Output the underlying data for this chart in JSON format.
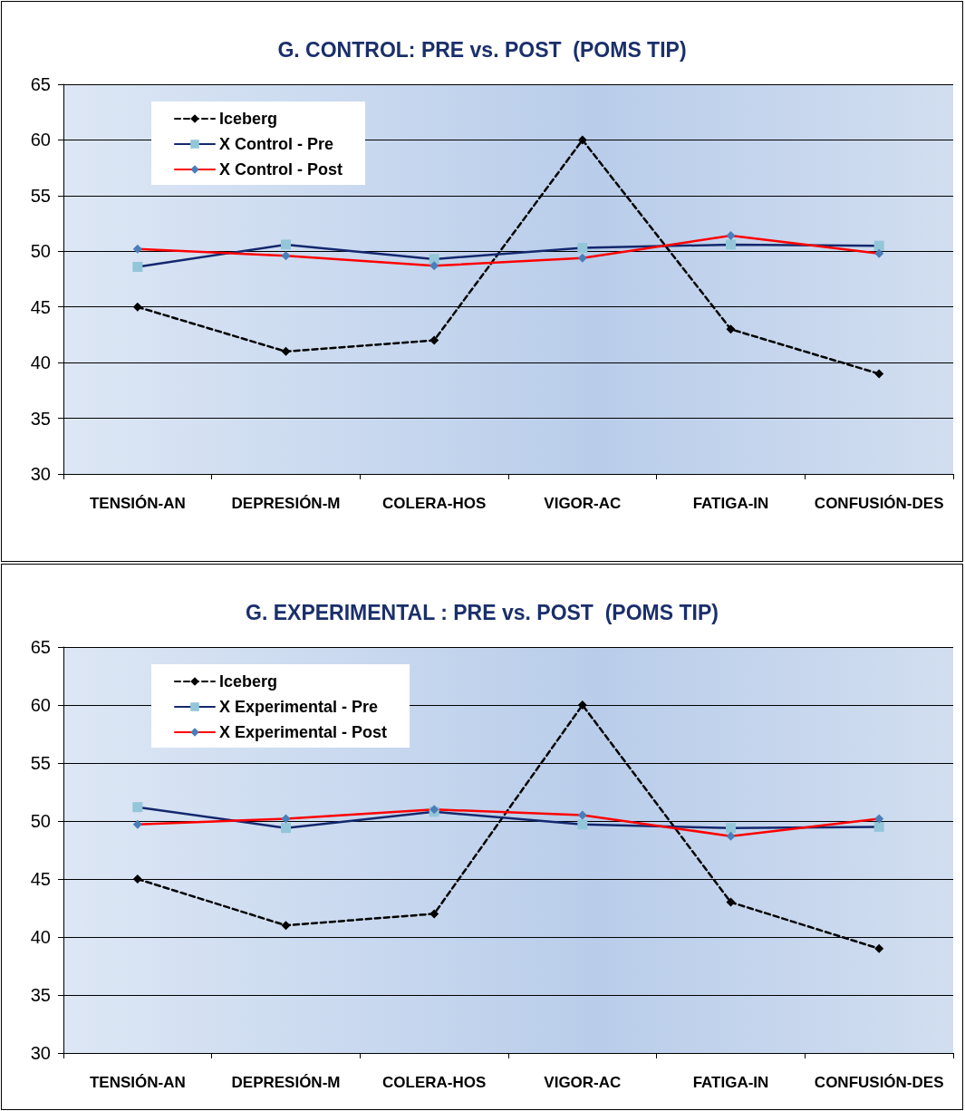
{
  "chart_data": [
    {
      "type": "line",
      "title": "G. CONTROL: PRE vs. POST  (POMS TIP)",
      "categories": [
        "TENSIÓN-AN",
        "DEPRESIÓN-M",
        "COLERA-HOS",
        "VIGOR-AC",
        "FATIGA-IN",
        "CONFUSIÓN-DES"
      ],
      "series": [
        {
          "name": "Iceberg",
          "color": "#000000",
          "marker": "diamond",
          "line_style": "dashed",
          "values": [
            45,
            41,
            42,
            60,
            43,
            39
          ]
        },
        {
          "name": "X Control - Pre",
          "color": "#14286e",
          "colors": [
            "#93c6d8",
            "#93c6d8",
            "#93c6d8",
            "#93c6d8",
            "#93c6d8",
            "#93c6d8"
          ],
          "marker": "square",
          "line_style": "solid",
          "values": [
            48.6,
            50.6,
            49.3,
            50.3,
            50.6,
            50.5
          ]
        },
        {
          "name": "X Control - Post",
          "color": "#ff0000",
          "colors": [
            "#4a7ebb",
            "#4a7ebb",
            "#4a7ebb",
            "#4a7ebb",
            "#4a7ebb",
            "#4a7ebb"
          ],
          "marker": "diamond",
          "line_style": "solid",
          "values": [
            50.2,
            49.6,
            48.7,
            49.4,
            51.4,
            49.8
          ]
        }
      ],
      "ylim": [
        30,
        65
      ],
      "yticks": [
        30,
        35,
        40,
        45,
        50,
        55,
        60,
        65
      ],
      "grid": "y",
      "legend": "top left"
    },
    {
      "type": "line",
      "title": "G. EXPERIMENTAL : PRE vs. POST  (POMS TIP)",
      "categories": [
        "TENSIÓN-AN",
        "DEPRESIÓN-M",
        "COLERA-HOS",
        "VIGOR-AC",
        "FATIGA-IN",
        "CONFUSIÓN-DES"
      ],
      "series": [
        {
          "name": "Iceberg",
          "color": "#000000",
          "marker": "diamond",
          "line_style": "dashed",
          "values": [
            45,
            41,
            42,
            60,
            43,
            39
          ]
        },
        {
          "name": "X Experimental - Pre",
          "color": "#14286e",
          "colors": [
            "#93c6d8",
            "#93c6d8",
            "#93c6d8",
            "#93c6d8",
            "#93c6d8",
            "#93c6d8"
          ],
          "marker": "square",
          "line_style": "solid",
          "values": [
            51.2,
            49.4,
            50.8,
            49.7,
            49.4,
            49.5
          ]
        },
        {
          "name": "X Experimental - Post",
          "color": "#ff0000",
          "colors": [
            "#4a7ebb",
            "#4a7ebb",
            "#4a7ebb",
            "#4a7ebb",
            "#4a7ebb",
            "#4a7ebb"
          ],
          "marker": "diamond",
          "line_style": "solid",
          "values": [
            49.7,
            50.2,
            51.0,
            50.5,
            48.7,
            50.2
          ]
        }
      ],
      "ylim": [
        30,
        65
      ],
      "yticks": [
        30,
        35,
        40,
        45,
        50,
        55,
        60,
        65
      ],
      "grid": "y",
      "legend": "top left"
    }
  ]
}
